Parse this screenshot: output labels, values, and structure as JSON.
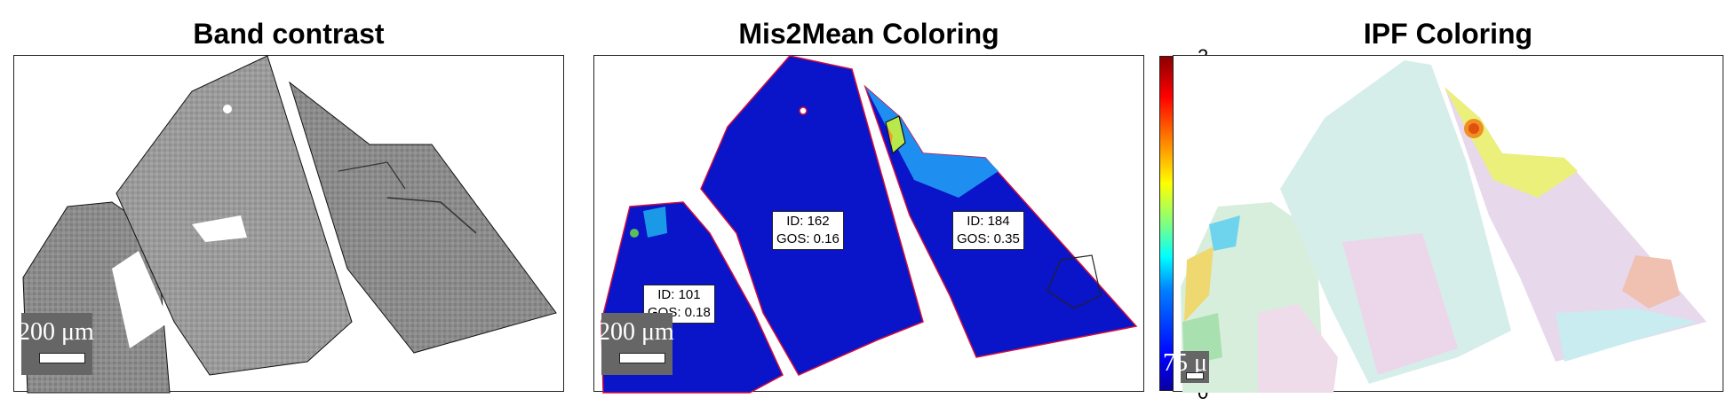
{
  "panels": [
    {
      "title": "Band contrast"
    },
    {
      "title": "Mis2Mean Coloring"
    },
    {
      "title": "IPF Coloring"
    }
  ],
  "scalebars": {
    "left": "200 μm",
    "middle": "200 μm",
    "right": "75 μ"
  },
  "grains": [
    {
      "id": "ID: 101",
      "gos": "GOS: 0.18"
    },
    {
      "id": "ID: 162",
      "gos": "GOS: 0.16"
    },
    {
      "id": "ID: 184",
      "gos": "GOS: 0.35"
    }
  ],
  "colorbar": {
    "top_tick": "2",
    "bottom_tick": "0",
    "colormap": "jet"
  }
}
